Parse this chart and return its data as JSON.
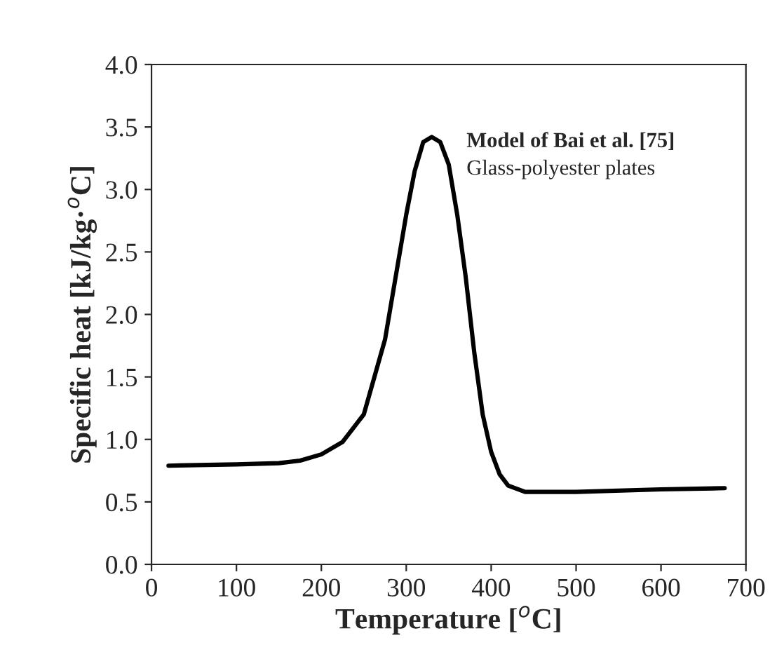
{
  "chart_data": {
    "type": "line",
    "xlabel": "Temperature [$^{o}$C]",
    "ylabel": "Specific heat [kJ/kg·$^{o}$C]",
    "x": [
      20,
      100,
      150,
      175,
      200,
      225,
      250,
      275,
      290,
      300,
      310,
      320,
      330,
      340,
      350,
      360,
      370,
      380,
      390,
      400,
      410,
      420,
      440,
      500,
      600,
      675
    ],
    "series": [
      {
        "color": "#000000",
        "values": [
          0.79,
          0.8,
          0.81,
          0.83,
          0.88,
          0.98,
          1.2,
          1.8,
          2.4,
          2.8,
          3.15,
          3.38,
          3.42,
          3.38,
          3.2,
          2.8,
          2.3,
          1.7,
          1.2,
          0.9,
          0.72,
          0.63,
          0.58,
          0.58,
          0.6,
          0.61
        ]
      }
    ],
    "xlim": [
      0,
      700
    ],
    "xticks": [
      0,
      100,
      200,
      300,
      400,
      500,
      600,
      700
    ],
    "ylim": [
      0,
      4
    ],
    "yticks": [
      {
        "value": 0,
        "label": "0.0"
      },
      {
        "value": 0.5,
        "label": "0.5"
      },
      {
        "value": 1,
        "label": "1.0"
      },
      {
        "value": 1.5,
        "label": "1.5"
      },
      {
        "value": 2,
        "label": "2.0"
      },
      {
        "value": 2.5,
        "label": "2.5"
      },
      {
        "value": 3,
        "label": "3.0"
      },
      {
        "value": 3.5,
        "label": "3.5"
      },
      {
        "value": 4,
        "label": "4.0"
      }
    ],
    "annotations": [
      "Model of Bai et al. [75]",
      "Glass-polyester plates"
    ],
    "grid": false,
    "legend": false
  }
}
